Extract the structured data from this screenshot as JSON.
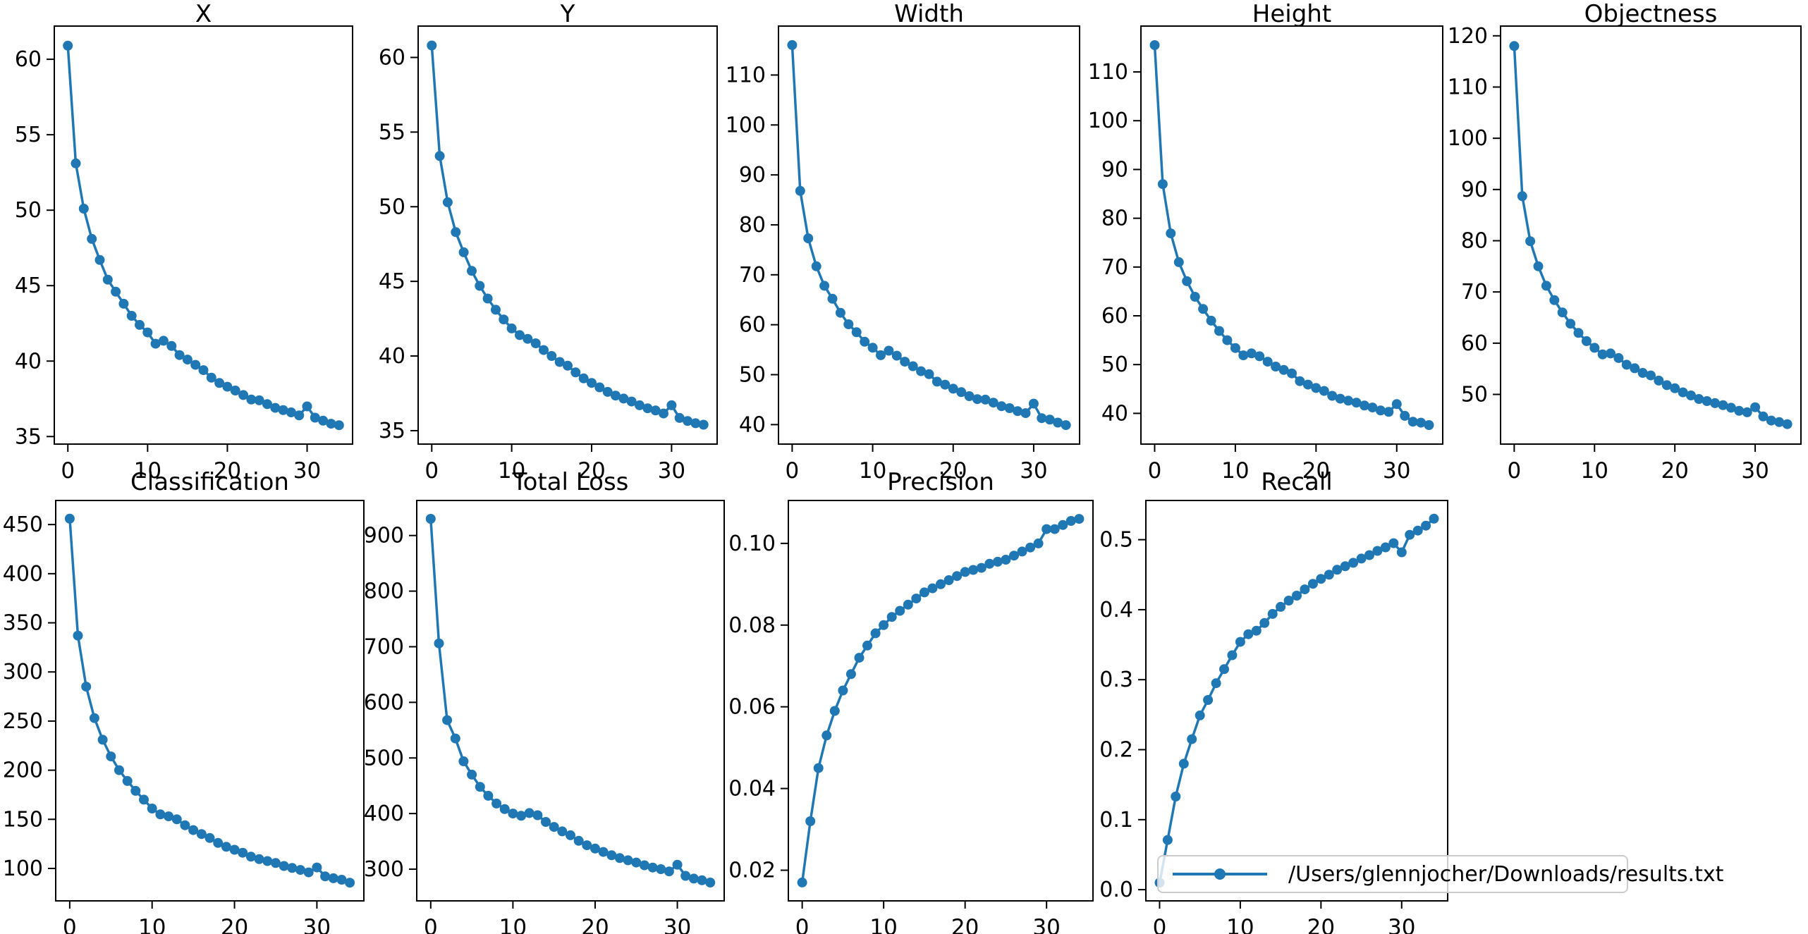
{
  "figure": {
    "background": "#ffffff",
    "line_color": "#1f77b4",
    "axis_color": "#000000",
    "tick_label_color": "#000000"
  },
  "legend": {
    "label": "/Users/glennjocher/Downloads/results.txt",
    "series_color": "#1f77b4",
    "position": "bottom-right"
  },
  "chart_data": [
    {
      "type": "line",
      "title": "X",
      "xlabel": "",
      "ylabel": "",
      "grid": false,
      "xlim": [
        -1.7,
        35.7
      ],
      "ylim": [
        34.5,
        62.2
      ],
      "xticks": [
        0,
        10,
        20,
        30
      ],
      "xtick_labels": [
        "0",
        "10",
        "20",
        "30"
      ],
      "yticks": [
        35,
        40,
        45,
        50,
        55,
        60
      ],
      "ytick_labels": [
        "35",
        "40",
        "45",
        "50",
        "55",
        "60"
      ],
      "x": [
        0,
        1,
        2,
        3,
        4,
        5,
        6,
        7,
        8,
        9,
        10,
        11,
        12,
        13,
        14,
        15,
        16,
        17,
        18,
        19,
        20,
        21,
        22,
        23,
        24,
        25,
        26,
        27,
        28,
        29,
        30,
        31,
        32,
        33,
        34
      ],
      "values": [
        60.9,
        53.1,
        50.1,
        48.1,
        46.7,
        45.4,
        44.6,
        43.8,
        43.0,
        42.4,
        41.9,
        41.15,
        41.35,
        41.0,
        40.4,
        40.1,
        39.75,
        39.4,
        38.9,
        38.55,
        38.3,
        38.05,
        37.75,
        37.45,
        37.4,
        37.15,
        36.9,
        36.75,
        36.6,
        36.4,
        37.0,
        36.25,
        36.05,
        35.85,
        35.75
      ]
    },
    {
      "type": "line",
      "title": "Y",
      "xlabel": "",
      "ylabel": "",
      "grid": false,
      "xlim": [
        -1.7,
        35.7
      ],
      "ylim": [
        34.1,
        62.1
      ],
      "xticks": [
        0,
        10,
        20,
        30
      ],
      "xtick_labels": [
        "0",
        "10",
        "20",
        "30"
      ],
      "yticks": [
        35,
        40,
        45,
        50,
        55,
        60
      ],
      "ytick_labels": [
        "35",
        "40",
        "45",
        "50",
        "55",
        "60"
      ],
      "x": [
        0,
        1,
        2,
        3,
        4,
        5,
        6,
        7,
        8,
        9,
        10,
        11,
        12,
        13,
        14,
        15,
        16,
        17,
        18,
        19,
        20,
        21,
        22,
        23,
        24,
        25,
        26,
        27,
        28,
        29,
        30,
        31,
        32,
        33,
        34
      ],
      "values": [
        60.8,
        53.4,
        50.3,
        48.3,
        46.95,
        45.7,
        44.7,
        43.85,
        43.1,
        42.45,
        41.85,
        41.4,
        41.15,
        40.85,
        40.4,
        40.0,
        39.6,
        39.35,
        38.9,
        38.5,
        38.2,
        37.9,
        37.6,
        37.35,
        37.15,
        36.95,
        36.7,
        36.5,
        36.35,
        36.15,
        36.7,
        35.85,
        35.65,
        35.5,
        35.4
      ]
    },
    {
      "type": "line",
      "title": "Width",
      "xlabel": "",
      "ylabel": "",
      "grid": false,
      "xlim": [
        -1.7,
        35.7
      ],
      "ylim": [
        36.1,
        119.8
      ],
      "xticks": [
        0,
        10,
        20,
        30
      ],
      "xtick_labels": [
        "0",
        "10",
        "20",
        "30"
      ],
      "yticks": [
        40,
        50,
        60,
        70,
        80,
        90,
        100,
        110
      ],
      "ytick_labels": [
        "40",
        "50",
        "60",
        "70",
        "80",
        "90",
        "100",
        "110"
      ],
      "x": [
        0,
        1,
        2,
        3,
        4,
        5,
        6,
        7,
        8,
        9,
        10,
        11,
        12,
        13,
        14,
        15,
        16,
        17,
        18,
        19,
        20,
        21,
        22,
        23,
        24,
        25,
        26,
        27,
        28,
        29,
        30,
        31,
        32,
        33,
        34
      ],
      "values": [
        116.0,
        86.8,
        77.3,
        71.7,
        67.8,
        65.2,
        62.4,
        60.1,
        58.5,
        56.6,
        55.4,
        53.9,
        54.8,
        53.8,
        52.6,
        51.7,
        50.7,
        50.1,
        48.6,
        48.0,
        47.2,
        46.5,
        45.7,
        45.1,
        45.0,
        44.4,
        43.7,
        43.3,
        42.7,
        42.3,
        44.2,
        41.3,
        41.0,
        40.4,
        39.9
      ]
    },
    {
      "type": "line",
      "title": "Height",
      "xlabel": "",
      "ylabel": "",
      "grid": false,
      "xlim": [
        -1.7,
        35.7
      ],
      "ylim": [
        33.7,
        119.4
      ],
      "xticks": [
        0,
        10,
        20,
        30
      ],
      "xtick_labels": [
        "0",
        "10",
        "20",
        "30"
      ],
      "yticks": [
        40,
        50,
        60,
        70,
        80,
        90,
        100,
        110
      ],
      "ytick_labels": [
        "40",
        "50",
        "60",
        "70",
        "80",
        "90",
        "100",
        "110"
      ],
      "x": [
        0,
        1,
        2,
        3,
        4,
        5,
        6,
        7,
        8,
        9,
        10,
        11,
        12,
        13,
        14,
        15,
        16,
        17,
        18,
        19,
        20,
        21,
        22,
        23,
        24,
        25,
        26,
        27,
        28,
        29,
        30,
        31,
        32,
        33,
        34
      ],
      "values": [
        115.5,
        87.0,
        76.9,
        71.0,
        67.1,
        63.9,
        61.4,
        59.0,
        56.9,
        55.0,
        53.4,
        51.9,
        52.3,
        51.7,
        50.6,
        49.6,
        48.9,
        48.2,
        46.6,
        45.9,
        45.2,
        44.6,
        43.6,
        43.0,
        42.6,
        42.2,
        41.6,
        41.2,
        40.6,
        40.3,
        41.9,
        39.5,
        38.3,
        38.1,
        37.6
      ]
    },
    {
      "type": "line",
      "title": "Objectness",
      "xlabel": "",
      "ylabel": "",
      "grid": false,
      "xlim": [
        -1.7,
        35.7
      ],
      "ylim": [
        40.3,
        121.9
      ],
      "xticks": [
        0,
        10,
        20,
        30
      ],
      "xtick_labels": [
        "0",
        "10",
        "20",
        "30"
      ],
      "yticks": [
        50,
        60,
        70,
        80,
        90,
        100,
        110,
        120
      ],
      "ytick_labels": [
        "50",
        "60",
        "70",
        "80",
        "90",
        "100",
        "110",
        "120"
      ],
      "x": [
        0,
        1,
        2,
        3,
        4,
        5,
        6,
        7,
        8,
        9,
        10,
        11,
        12,
        13,
        14,
        15,
        16,
        17,
        18,
        19,
        20,
        21,
        22,
        23,
        24,
        25,
        26,
        27,
        28,
        29,
        30,
        31,
        32,
        33,
        34
      ],
      "values": [
        118.0,
        88.7,
        79.9,
        75.0,
        71.2,
        68.4,
        66.0,
        63.8,
        62.0,
        60.4,
        59.1,
        57.8,
        58.0,
        57.1,
        55.8,
        55.1,
        54.2,
        53.7,
        52.7,
        51.8,
        51.2,
        50.4,
        49.8,
        49.1,
        48.7,
        48.3,
        47.9,
        47.4,
        46.8,
        46.5,
        47.5,
        45.7,
        44.9,
        44.6,
        44.2
      ]
    },
    {
      "type": "line",
      "title": "Classification",
      "xlabel": "",
      "ylabel": "",
      "grid": false,
      "xlim": [
        -1.7,
        35.7
      ],
      "ylim": [
        67,
        474.5
      ],
      "xticks": [
        0,
        10,
        20,
        30
      ],
      "xtick_labels": [
        "0",
        "10",
        "20",
        "30"
      ],
      "yticks": [
        100,
        150,
        200,
        250,
        300,
        350,
        400,
        450
      ],
      "ytick_labels": [
        "100",
        "150",
        "200",
        "250",
        "300",
        "350",
        "400",
        "450"
      ],
      "x": [
        0,
        1,
        2,
        3,
        4,
        5,
        6,
        7,
        8,
        9,
        10,
        11,
        12,
        13,
        14,
        15,
        16,
        17,
        18,
        19,
        20,
        21,
        22,
        23,
        24,
        25,
        26,
        27,
        28,
        29,
        30,
        31,
        32,
        33,
        34
      ],
      "values": [
        456,
        337,
        285,
        253,
        231,
        214,
        200,
        189,
        179,
        170,
        161,
        155,
        153,
        150,
        144,
        139,
        135,
        131,
        126,
        122,
        119,
        116,
        112,
        109.5,
        107.5,
        105.5,
        102.5,
        100.5,
        98.5,
        96,
        101,
        92,
        90,
        88.5,
        85.5
      ]
    },
    {
      "type": "line",
      "title": "Total Loss",
      "xlabel": "",
      "ylabel": "",
      "grid": false,
      "xlim": [
        -1.7,
        35.7
      ],
      "ylim": [
        243,
        963
      ],
      "xticks": [
        0,
        10,
        20,
        30
      ],
      "xtick_labels": [
        "0",
        "10",
        "20",
        "30"
      ],
      "yticks": [
        300,
        400,
        500,
        600,
        700,
        800,
        900
      ],
      "ytick_labels": [
        "300",
        "400",
        "500",
        "600",
        "700",
        "800",
        "900"
      ],
      "x": [
        0,
        1,
        2,
        3,
        4,
        5,
        6,
        7,
        8,
        9,
        10,
        11,
        12,
        13,
        14,
        15,
        16,
        17,
        18,
        19,
        20,
        21,
        22,
        23,
        24,
        25,
        26,
        27,
        28,
        29,
        30,
        31,
        32,
        33,
        34
      ],
      "values": [
        930,
        706,
        568,
        535,
        494,
        470,
        448,
        432,
        418,
        408,
        400,
        396,
        401,
        397,
        385,
        376,
        368,
        361,
        351,
        343,
        337,
        331,
        325,
        320,
        316,
        312,
        307,
        303,
        300,
        296,
        308,
        288,
        283,
        280,
        276
      ]
    },
    {
      "type": "line",
      "title": "Precision",
      "xlabel": "",
      "ylabel": "",
      "grid": false,
      "xlim": [
        -1.7,
        35.7
      ],
      "ylim": [
        0.0125,
        0.1105
      ],
      "xticks": [
        0,
        10,
        20,
        30
      ],
      "xtick_labels": [
        "0",
        "10",
        "20",
        "30"
      ],
      "yticks": [
        0.02,
        0.04,
        0.06,
        0.08,
        0.1
      ],
      "ytick_labels": [
        "0.02",
        "0.04",
        "0.06",
        "0.08",
        "0.10"
      ],
      "x": [
        0,
        1,
        2,
        3,
        4,
        5,
        6,
        7,
        8,
        9,
        10,
        11,
        12,
        13,
        14,
        15,
        16,
        17,
        18,
        19,
        20,
        21,
        22,
        23,
        24,
        25,
        26,
        27,
        28,
        29,
        30,
        31,
        32,
        33,
        34
      ],
      "values": [
        0.017,
        0.032,
        0.045,
        0.053,
        0.059,
        0.064,
        0.068,
        0.072,
        0.075,
        0.078,
        0.08,
        0.082,
        0.0835,
        0.085,
        0.0865,
        0.088,
        0.089,
        0.09,
        0.091,
        0.092,
        0.093,
        0.0935,
        0.094,
        0.095,
        0.0955,
        0.096,
        0.097,
        0.098,
        0.099,
        0.1,
        0.1035,
        0.1035,
        0.1045,
        0.1055,
        0.106
      ]
    },
    {
      "type": "line",
      "title": "Recall",
      "xlabel": "",
      "ylabel": "",
      "grid": false,
      "xlim": [
        -1.7,
        35.7
      ],
      "ylim": [
        -0.016,
        0.556
      ],
      "xticks": [
        0,
        10,
        20,
        30
      ],
      "xtick_labels": [
        "0",
        "10",
        "20",
        "30"
      ],
      "yticks": [
        0.0,
        0.1,
        0.2,
        0.3,
        0.4,
        0.5
      ],
      "ytick_labels": [
        "0.0",
        "0.1",
        "0.2",
        "0.3",
        "0.4",
        "0.5"
      ],
      "x": [
        0,
        1,
        2,
        3,
        4,
        5,
        6,
        7,
        8,
        9,
        10,
        11,
        12,
        13,
        14,
        15,
        16,
        17,
        18,
        19,
        20,
        21,
        22,
        23,
        24,
        25,
        26,
        27,
        28,
        29,
        30,
        31,
        32,
        33,
        34
      ],
      "values": [
        0.01,
        0.071,
        0.133,
        0.18,
        0.215,
        0.249,
        0.271,
        0.295,
        0.315,
        0.335,
        0.354,
        0.365,
        0.37,
        0.381,
        0.394,
        0.404,
        0.413,
        0.42,
        0.429,
        0.437,
        0.444,
        0.45,
        0.457,
        0.462,
        0.467,
        0.473,
        0.478,
        0.484,
        0.489,
        0.495,
        0.482,
        0.507,
        0.513,
        0.52,
        0.53
      ]
    }
  ]
}
